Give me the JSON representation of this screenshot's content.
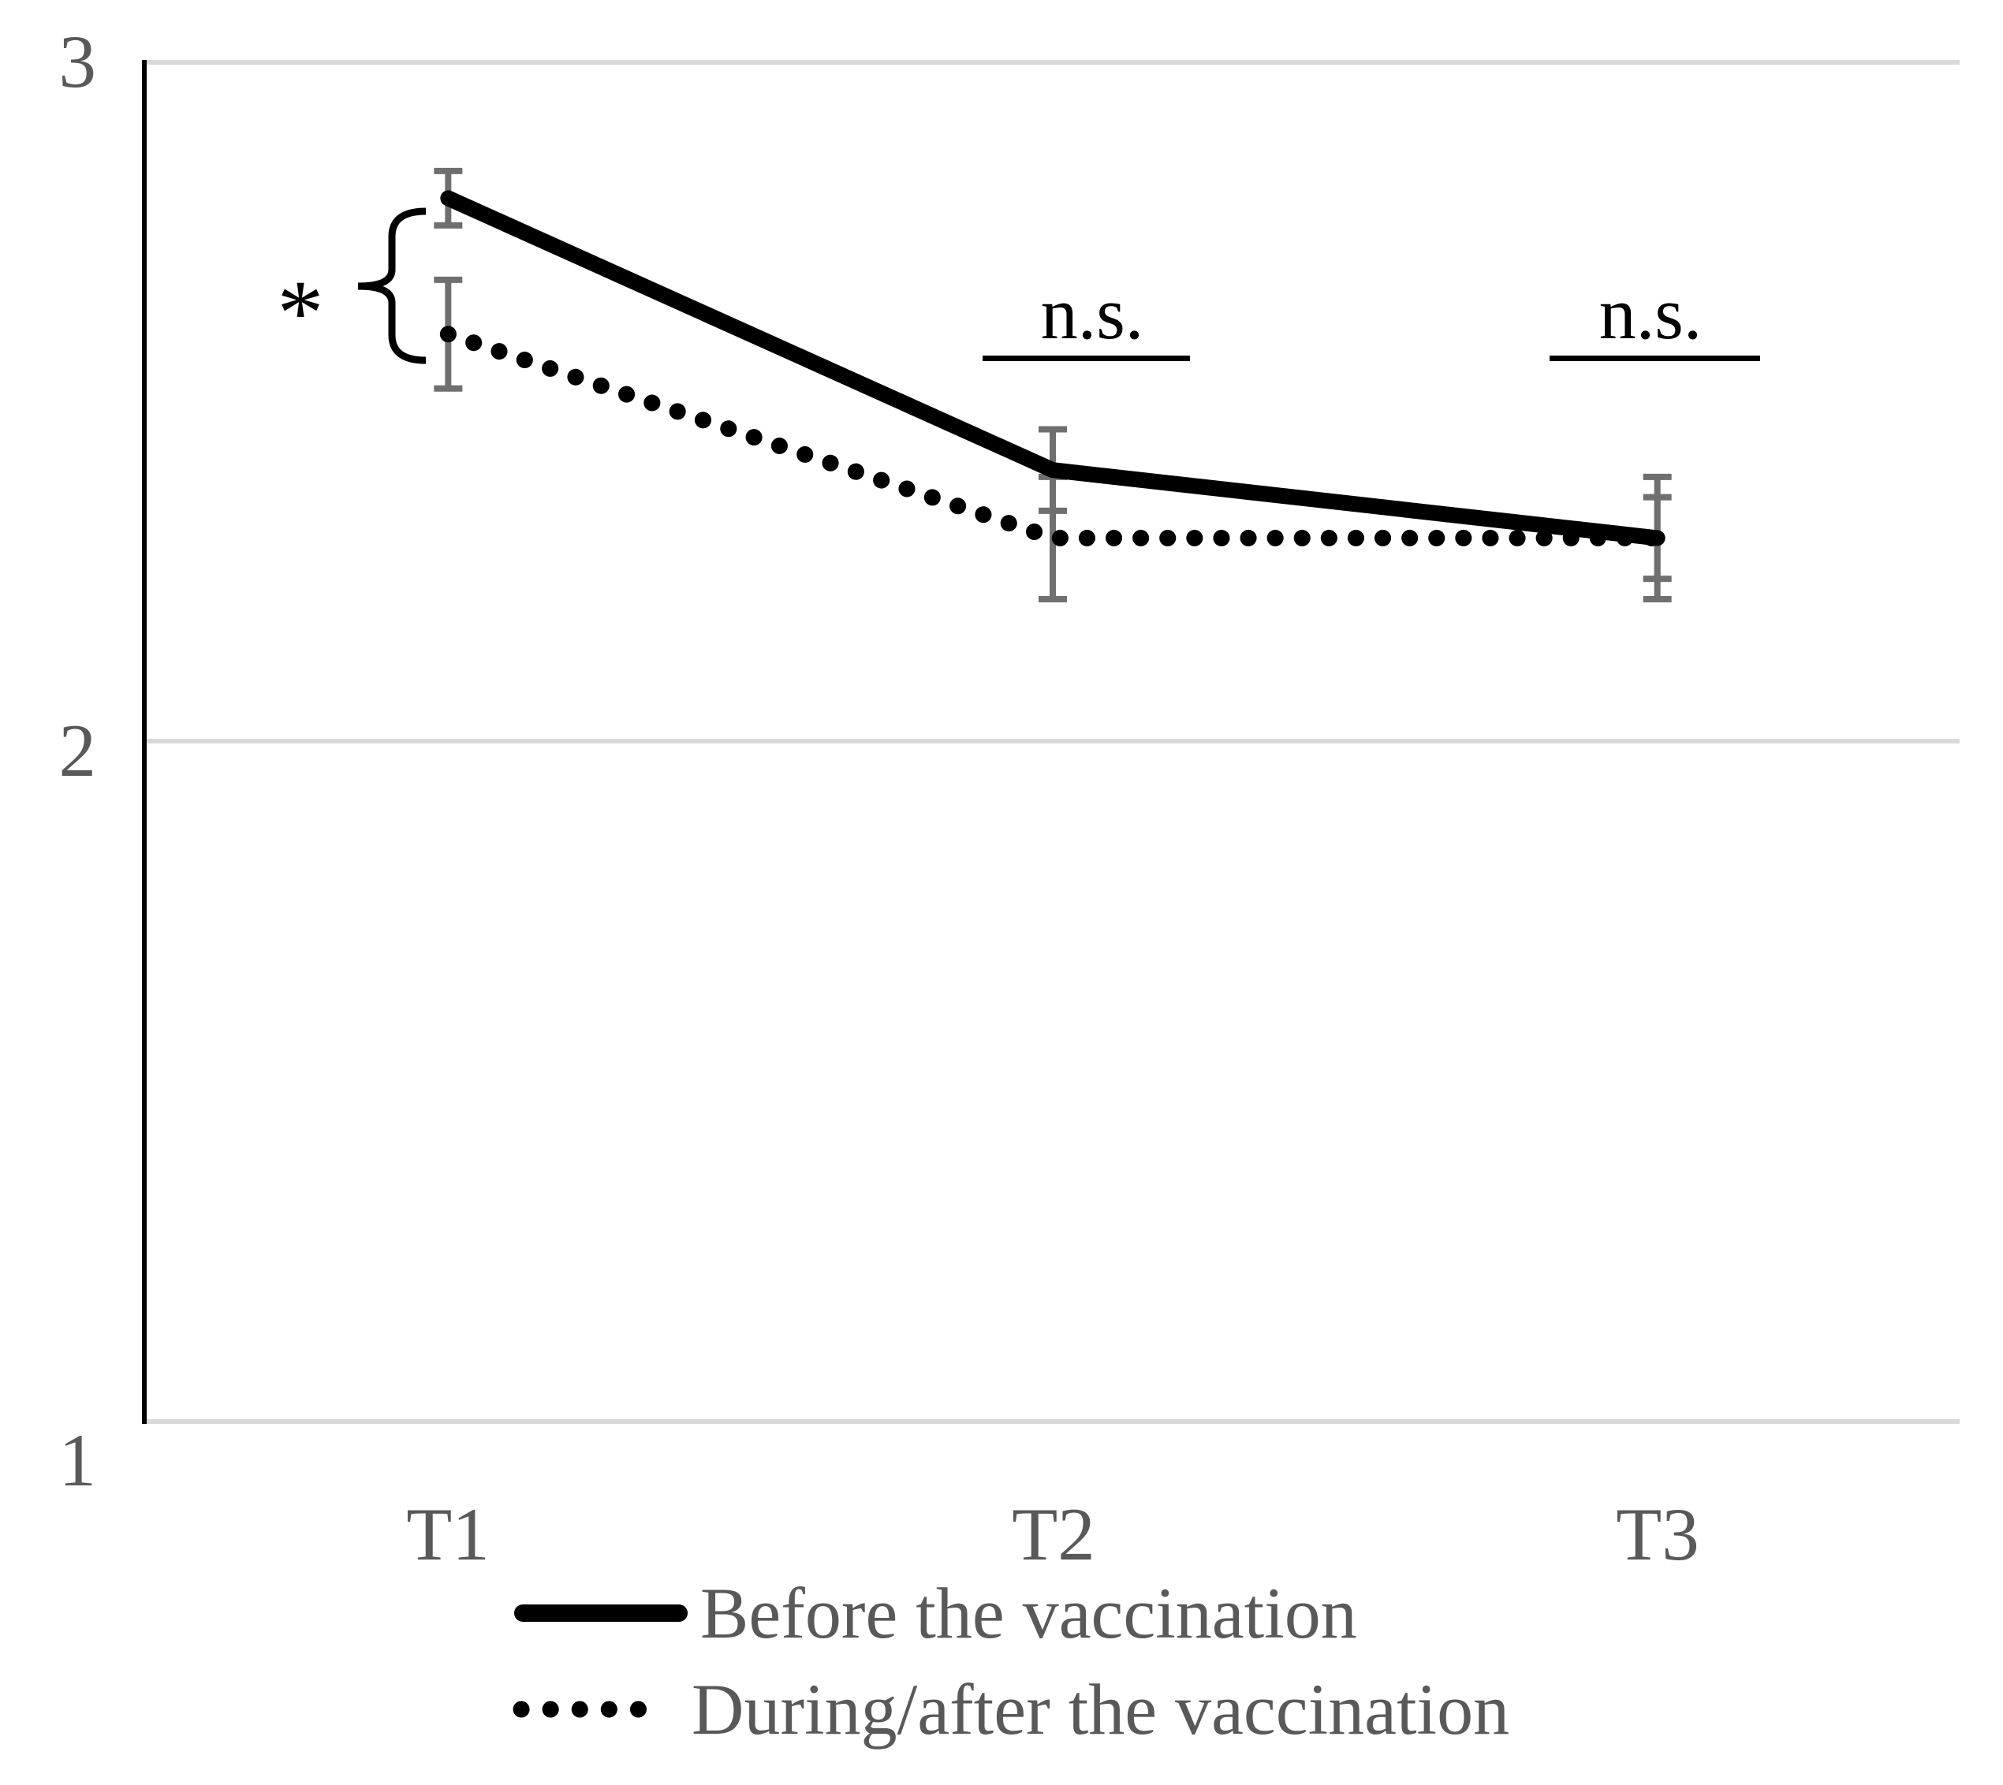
{
  "chart_data": {
    "type": "line",
    "categories": [
      "T1",
      "T2",
      "T3"
    ],
    "series": [
      {
        "name": "Before the vaccination",
        "line_style": "solid",
        "color": "#000000",
        "values": [
          2.8,
          2.4,
          2.3
        ],
        "error_bars": [
          0.04,
          0.06,
          0.06
        ]
      },
      {
        "name": "During/after the vaccination",
        "line_style": "dotted",
        "color": "#000000",
        "values": [
          2.6,
          2.3,
          2.3
        ],
        "error_bars": [
          0.08,
          0.09,
          0.09
        ]
      }
    ],
    "title": "",
    "xlabel": "",
    "ylabel": "",
    "ylim": [
      1,
      3
    ],
    "ytick_labels": [
      "3",
      "2",
      "1"
    ],
    "ytick_values": [
      3,
      2,
      1
    ],
    "grid": "horizontal",
    "legend_position": "bottom-left",
    "annotations": [
      {
        "id": "sig-t1",
        "label": "*",
        "at": "T1",
        "style": "brace"
      },
      {
        "id": "ns-t2",
        "label": "n.s.",
        "at": "T2",
        "style": "underline"
      },
      {
        "id": "ns-t3",
        "label": "n.s.",
        "at": "T3",
        "style": "underline"
      }
    ]
  },
  "colors": {
    "line": "#000000",
    "error_bar": "#6f6f6f",
    "gridline": "#d9d9d9",
    "axis_line": "#000000",
    "tick_label": "#595959",
    "legend_label": "#595959",
    "annotation": "#000000"
  }
}
